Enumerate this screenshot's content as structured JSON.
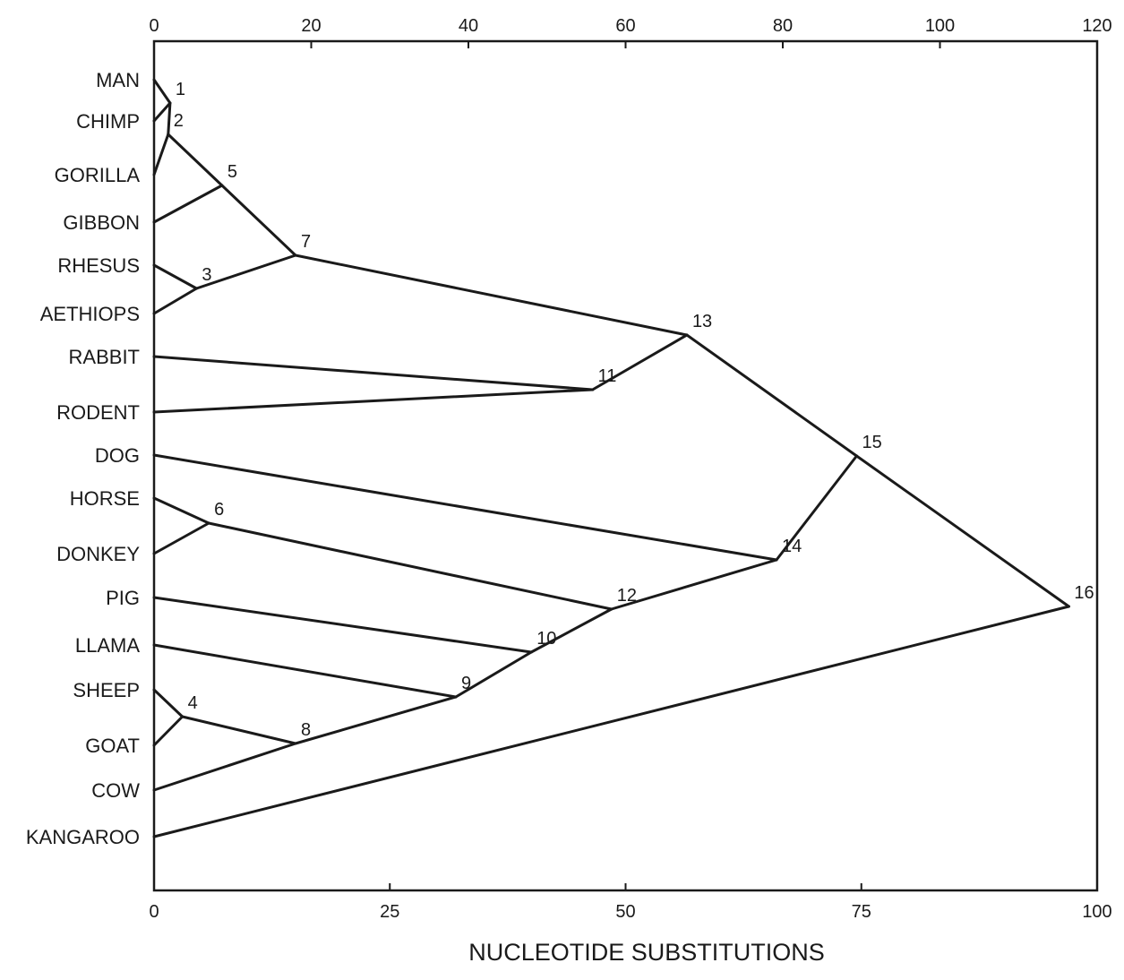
{
  "axis_title": "NUCLEOTIDE SUBSTITUTIONS",
  "top_axis_ticks": [
    "0",
    "20",
    "40",
    "60",
    "80",
    "100",
    "120"
  ],
  "bottom_axis_ticks": [
    "0",
    "25",
    "50",
    "75",
    "100"
  ],
  "taxa": [
    "MAN",
    "CHIMP",
    "GORILLA",
    "GIBBON",
    "RHESUS",
    "AETHIOPS",
    "RABBIT",
    "RODENT",
    "DOG",
    "HORSE",
    "DONKEY",
    "PIG",
    "LLAMA",
    "SHEEP",
    "GOAT",
    "COW",
    "KANGAROO"
  ],
  "nodes": [
    {
      "id": "1",
      "substitutions": 1.7,
      "children": [
        "MAN",
        "CHIMP"
      ]
    },
    {
      "id": "2",
      "substitutions": 1.5,
      "children": [
        "1",
        "GORILLA"
      ]
    },
    {
      "id": "3",
      "substitutions": 4.5,
      "children": [
        "RHESUS",
        "AETHIOPS"
      ]
    },
    {
      "id": "4",
      "substitutions": 3,
      "children": [
        "SHEEP",
        "GOAT"
      ]
    },
    {
      "id": "5",
      "substitutions": 7.2,
      "children": [
        "2",
        "GIBBON"
      ]
    },
    {
      "id": "6",
      "substitutions": 5.8,
      "children": [
        "HORSE",
        "DONKEY"
      ]
    },
    {
      "id": "7",
      "substitutions": 15,
      "children": [
        "5",
        "3"
      ]
    },
    {
      "id": "8",
      "substitutions": 15,
      "children": [
        "4",
        "COW"
      ]
    },
    {
      "id": "9",
      "substitutions": 32,
      "children": [
        "8",
        "LLAMA"
      ]
    },
    {
      "id": "10",
      "substitutions": 40,
      "children": [
        "9",
        "PIG"
      ]
    },
    {
      "id": "11",
      "substitutions": 46.5,
      "children": [
        "RABBIT",
        "RODENT"
      ]
    },
    {
      "id": "12",
      "substitutions": 48.5,
      "children": [
        "10",
        "6"
      ]
    },
    {
      "id": "13",
      "substitutions": 56.5,
      "children": [
        "7",
        "11"
      ]
    },
    {
      "id": "14",
      "substitutions": 66,
      "children": [
        "12",
        "DOG"
      ]
    },
    {
      "id": "15",
      "substitutions": 74.5,
      "children": [
        "14",
        "13"
      ]
    },
    {
      "id": "16",
      "substitutions": 97,
      "children": [
        "15",
        "KANGAROO"
      ]
    }
  ],
  "colors": {
    "ink": "#1a1a1a",
    "background": "#ffffff"
  }
}
